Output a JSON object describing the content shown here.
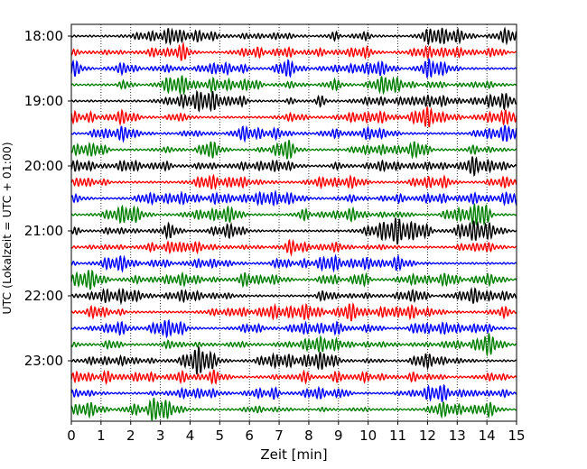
{
  "chart_data": {
    "type": "line",
    "title": "",
    "xlabel": "Zeit  [min]",
    "ylabel": "UTC (Lokalzeit = UTC + 01:00)",
    "xlim": [
      0,
      15
    ],
    "x_ticks": [
      "0",
      "1",
      "2",
      "3",
      "4",
      "5",
      "6",
      "7",
      "8",
      "9",
      "10",
      "11",
      "12",
      "13",
      "14",
      "15"
    ],
    "y_ticks": [
      "18:00",
      "19:00",
      "20:00",
      "21:00",
      "22:00",
      "23:00"
    ],
    "grid": "vertical dotted",
    "legend": "none",
    "trace_colors": [
      "#000000",
      "#ff0000",
      "#0000ff",
      "#008000"
    ],
    "traces": [
      {
        "start": "18:00",
        "color": "#000000"
      },
      {
        "start": "18:15",
        "color": "#ff0000"
      },
      {
        "start": "18:30",
        "color": "#0000ff"
      },
      {
        "start": "18:45",
        "color": "#008000"
      },
      {
        "start": "19:00",
        "color": "#000000"
      },
      {
        "start": "19:15",
        "color": "#ff0000"
      },
      {
        "start": "19:30",
        "color": "#0000ff"
      },
      {
        "start": "19:45",
        "color": "#008000"
      },
      {
        "start": "20:00",
        "color": "#000000"
      },
      {
        "start": "20:15",
        "color": "#ff0000"
      },
      {
        "start": "20:30",
        "color": "#0000ff"
      },
      {
        "start": "20:45",
        "color": "#008000"
      },
      {
        "start": "21:00",
        "color": "#000000"
      },
      {
        "start": "21:15",
        "color": "#ff0000"
      },
      {
        "start": "21:30",
        "color": "#0000ff"
      },
      {
        "start": "21:45",
        "color": "#008000"
      },
      {
        "start": "22:00",
        "color": "#000000"
      },
      {
        "start": "22:15",
        "color": "#ff0000"
      },
      {
        "start": "22:30",
        "color": "#0000ff"
      },
      {
        "start": "22:45",
        "color": "#008000"
      },
      {
        "start": "23:00",
        "color": "#000000"
      },
      {
        "start": "23:15",
        "color": "#ff0000"
      },
      {
        "start": "23:30",
        "color": "#0000ff"
      },
      {
        "start": "23:45",
        "color": "#008000"
      }
    ]
  }
}
